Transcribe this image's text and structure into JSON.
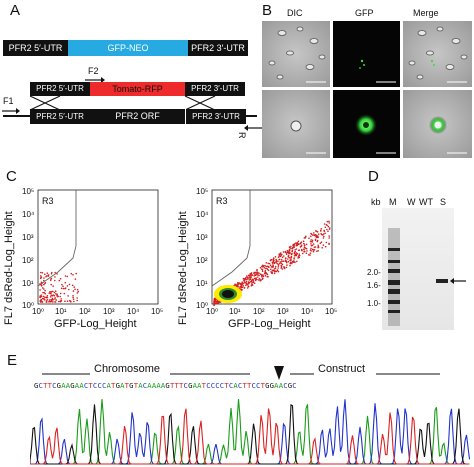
{
  "panels": {
    "a": {
      "label": "A",
      "construct1": {
        "left": "PFR2 5′-UTR",
        "mid": "GFP-NEO",
        "right": "PFR2 3′-UTR"
      },
      "construct2": {
        "left": "PFR2 5′-UTR",
        "mid": "Tomato-RFP",
        "right": "PFR2 3′-UTR"
      },
      "genomic": {
        "left": "PFR2 5′-UTR",
        "mid": "PFR2 ORF",
        "right": "PFR2 3′-UTR"
      },
      "primers": {
        "f1": "F1",
        "f2": "F2",
        "r": "R"
      }
    },
    "b": {
      "label": "B",
      "columns": [
        "DIC",
        "GFP",
        "Merge"
      ]
    },
    "c": {
      "label": "C",
      "gate_label": "R3",
      "ylabel": "FL7 dsRed-Log_Height",
      "xlabel": "GFP-Log_Height",
      "ticks": [
        "10⁰",
        "10¹",
        "10²",
        "10³",
        "10⁴",
        "10⁵"
      ]
    },
    "d": {
      "label": "D",
      "kb": "kb",
      "lanes": [
        "M",
        "W",
        "WT",
        "S"
      ],
      "markers": [
        "2.0-",
        "1.6-",
        "1.0-"
      ]
    },
    "e": {
      "label": "E",
      "left_label": "Chromosome",
      "right_label": "Construct",
      "sequence": "GCTTCGAAGAACTCCCATGATGTACAAAAGTTTCGAATCCCCTCACTTCCTGGAACGC"
    }
  },
  "colors": {
    "gfp_neo": "#27a9e1",
    "tomato": "#ee2a2a",
    "bar_dark": "#111111",
    "flow_red": "#d42020"
  }
}
